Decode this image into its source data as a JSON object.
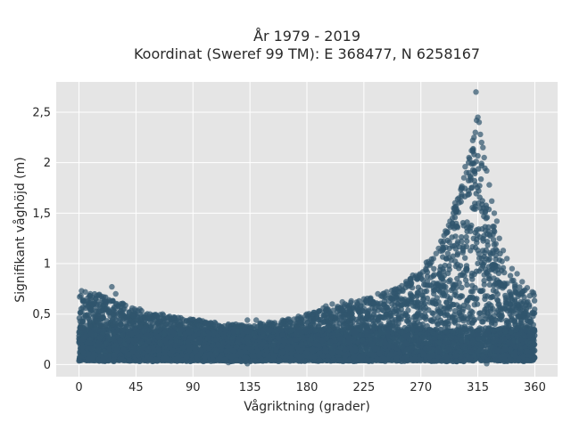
{
  "chart_data": {
    "type": "scatter",
    "title_lines": [
      "År 1979 - 2019",
      "Koordinat (Sweref 99 TM): E 368477, N 6258167"
    ],
    "xlabel": "Vågriktning (grader)",
    "ylabel": "Signifikant våghöjd (m)",
    "xlim": [
      -18,
      378
    ],
    "ylim": [
      -0.12,
      2.8
    ],
    "xticks": [
      0,
      45,
      90,
      135,
      180,
      225,
      270,
      315,
      360
    ],
    "xtick_labels": [
      "0",
      "45",
      "90",
      "135",
      "180",
      "225",
      "270",
      "315",
      "360"
    ],
    "yticks": [
      0,
      0.5,
      1,
      1.5,
      2,
      2.5
    ],
    "ytick_labels": [
      "0",
      "0,5",
      "1",
      "1,5",
      "2",
      "2,5"
    ],
    "grid": true,
    "marker_color": "#30566E",
    "plot_background": "#E5E5E5",
    "envelope_note_values": {
      "direction": [
        0,
        15,
        30,
        45,
        60,
        75,
        90,
        105,
        120,
        135,
        150,
        165,
        180,
        195,
        210,
        225,
        240,
        255,
        270,
        285,
        295,
        300,
        305,
        310,
        315,
        320,
        325,
        330,
        340,
        350,
        360
      ],
      "upper_hs": [
        0.7,
        0.7,
        0.65,
        0.55,
        0.5,
        0.48,
        0.45,
        0.42,
        0.4,
        0.4,
        0.42,
        0.45,
        0.5,
        0.55,
        0.6,
        0.65,
        0.7,
        0.8,
        0.95,
        1.2,
        1.5,
        1.7,
        1.95,
        2.1,
        2.3,
        2.0,
        1.6,
        1.2,
        0.9,
        0.75,
        0.7
      ]
    },
    "points": [
      [
        2,
        0.73
      ],
      [
        5,
        0.72
      ],
      [
        9,
        0.7
      ],
      [
        14,
        0.68
      ],
      [
        20,
        0.63
      ],
      [
        26,
        0.77
      ],
      [
        29,
        0.7
      ],
      [
        35,
        0.6
      ],
      [
        42,
        0.56
      ],
      [
        48,
        0.55
      ],
      [
        56,
        0.5
      ],
      [
        66,
        0.5
      ],
      [
        75,
        0.47
      ],
      [
        88,
        0.45
      ],
      [
        100,
        0.42
      ],
      [
        118,
        0.4
      ],
      [
        133,
        0.44
      ],
      [
        150,
        0.42
      ],
      [
        165,
        0.45
      ],
      [
        180,
        0.5
      ],
      [
        193,
        0.56
      ],
      [
        200,
        0.6
      ],
      [
        208,
        0.62
      ],
      [
        215,
        0.63
      ],
      [
        220,
        0.6
      ],
      [
        225,
        0.65
      ],
      [
        230,
        0.65
      ],
      [
        236,
        0.7
      ],
      [
        243,
        0.72
      ],
      [
        250,
        0.75
      ],
      [
        255,
        0.78
      ],
      [
        259,
        0.8
      ],
      [
        262,
        0.85
      ],
      [
        266,
        0.88
      ],
      [
        270,
        0.88
      ],
      [
        274,
        0.95
      ],
      [
        277,
        1.0
      ],
      [
        280,
        1.05
      ],
      [
        284,
        1.15
      ],
      [
        287,
        1.2
      ],
      [
        290,
        1.3
      ],
      [
        293,
        1.42
      ],
      [
        295,
        1.45
      ],
      [
        297,
        1.6
      ],
      [
        300,
        1.65
      ],
      [
        302,
        1.75
      ],
      [
        304,
        1.85
      ],
      [
        306,
        1.9
      ],
      [
        308,
        2.05
      ],
      [
        310,
        2.12
      ],
      [
        311,
        2.22
      ],
      [
        312,
        2.25
      ],
      [
        313,
        2.3
      ],
      [
        314,
        2.42
      ],
      [
        315,
        2.45
      ],
      [
        316,
        2.4
      ],
      [
        317,
        2.28
      ],
      [
        318,
        2.2
      ],
      [
        319,
        2.15
      ],
      [
        320,
        2.05
      ],
      [
        322,
        1.92
      ],
      [
        324,
        1.78
      ],
      [
        326,
        1.62
      ],
      [
        328,
        1.5
      ],
      [
        330,
        1.42
      ],
      [
        332,
        1.25
      ],
      [
        335,
        1.13
      ],
      [
        338,
        1.05
      ],
      [
        342,
        0.95
      ],
      [
        346,
        0.9
      ],
      [
        350,
        0.82
      ],
      [
        354,
        0.76
      ],
      [
        358,
        0.72
      ],
      [
        313.5,
        2.7
      ],
      [
        305,
        1.96
      ],
      [
        308,
        1.9
      ],
      [
        296,
        1.55
      ],
      [
        292,
        1.38
      ],
      [
        288,
        1.22
      ],
      [
        282,
        1.1
      ],
      [
        276,
        1.02
      ],
      [
        265,
        0.86
      ],
      [
        253,
        0.76
      ],
      [
        240,
        0.7
      ],
      [
        230,
        0.65
      ],
      [
        210,
        0.6
      ],
      [
        195,
        0.58
      ],
      [
        170,
        0.45
      ],
      [
        140,
        0.44
      ],
      [
        95,
        0.44
      ],
      [
        61,
        0.49
      ],
      [
        44,
        0.55
      ],
      [
        21,
        0.62
      ],
      [
        7,
        0.66
      ],
      [
        359,
        0.71
      ],
      [
        118,
        0.02
      ],
      [
        133,
        0.01
      ],
      [
        322,
        0.01
      ]
    ]
  }
}
